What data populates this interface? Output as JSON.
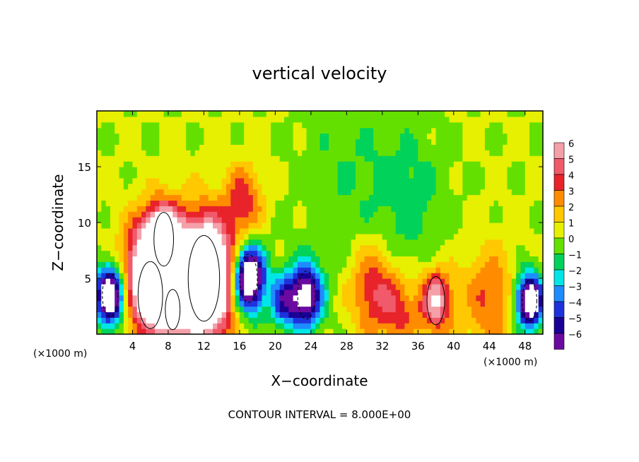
{
  "chart_data": {
    "type": "heatmap",
    "title": "vertical velocity",
    "xlabel": "X−coordinate",
    "ylabel": "Z−coordinate",
    "x_unit_left": "(×1000 m)",
    "x_unit_right": "(×1000 m)",
    "footer": "CONTOUR INTERVAL = 8.000E+00",
    "xlim": [
      0,
      50
    ],
    "ylim": [
      0,
      20
    ],
    "x_ticks": [
      4,
      8,
      12,
      16,
      20,
      24,
      28,
      32,
      36,
      40,
      44,
      48
    ],
    "x_tick_labels": [
      "4",
      "8",
      "12",
      "16",
      "20",
      "24",
      "28",
      "32",
      "36",
      "40",
      "44",
      "48"
    ],
    "y_ticks": [
      5,
      10,
      15
    ],
    "y_tick_labels": [
      "5",
      "10",
      "15"
    ],
    "colorbar": {
      "levels": [
        6,
        5,
        4,
        3,
        2,
        1,
        0,
        -1,
        -2,
        -3,
        -4,
        -5,
        -6
      ],
      "labels": [
        "6",
        "5",
        "4",
        "3",
        "2",
        "1",
        "0",
        "−1",
        "−2",
        "−3",
        "−4",
        "−5",
        "−6"
      ],
      "colors": [
        "#f4a0a8",
        "#f05a6a",
        "#e8232a",
        "#ff8c00",
        "#ffc800",
        "#e6f000",
        "#64e000",
        "#00d25a",
        "#00e6e6",
        "#1e8cff",
        "#1e32dc",
        "#1a0096",
        "#6a0aa0"
      ]
    },
    "features": [
      {
        "x": 12,
        "z": 5,
        "w": 3.2,
        "value": 14
      },
      {
        "x": 7.5,
        "z": 8.5,
        "w": 2.0,
        "value": 9
      },
      {
        "x": 6,
        "z": 3.5,
        "w": 2.5,
        "value": 7
      },
      {
        "x": 8.5,
        "z": 2.2,
        "w": 1.5,
        "value": 6
      },
      {
        "x": 5,
        "z": 7,
        "w": 2.5,
        "value": 4
      },
      {
        "x": 16.5,
        "z": 12,
        "w": 2.0,
        "value": 3.5
      },
      {
        "x": 31,
        "z": 4,
        "w": 2.5,
        "value": 4
      },
      {
        "x": 34,
        "z": 2,
        "w": 2.0,
        "value": 3
      },
      {
        "x": 38,
        "z": 3,
        "w": 1.8,
        "value": 6
      },
      {
        "x": 44,
        "z": 3,
        "w": 3.0,
        "value": 3
      },
      {
        "x": 1.5,
        "z": 3.5,
        "w": 1.6,
        "value": -10
      },
      {
        "x": 17,
        "z": 5,
        "w": 1.8,
        "value": -11
      },
      {
        "x": 23.5,
        "z": 3.5,
        "w": 1.8,
        "value": -8
      },
      {
        "x": 21,
        "z": 3,
        "w": 1.5,
        "value": -5
      },
      {
        "x": 48.5,
        "z": 3,
        "w": 1.5,
        "value": -10
      },
      {
        "x": 35,
        "z": 12,
        "w": 4.0,
        "value": -1.6
      },
      {
        "x": 28,
        "z": 15,
        "w": 5.0,
        "value": -1.0
      }
    ]
  }
}
